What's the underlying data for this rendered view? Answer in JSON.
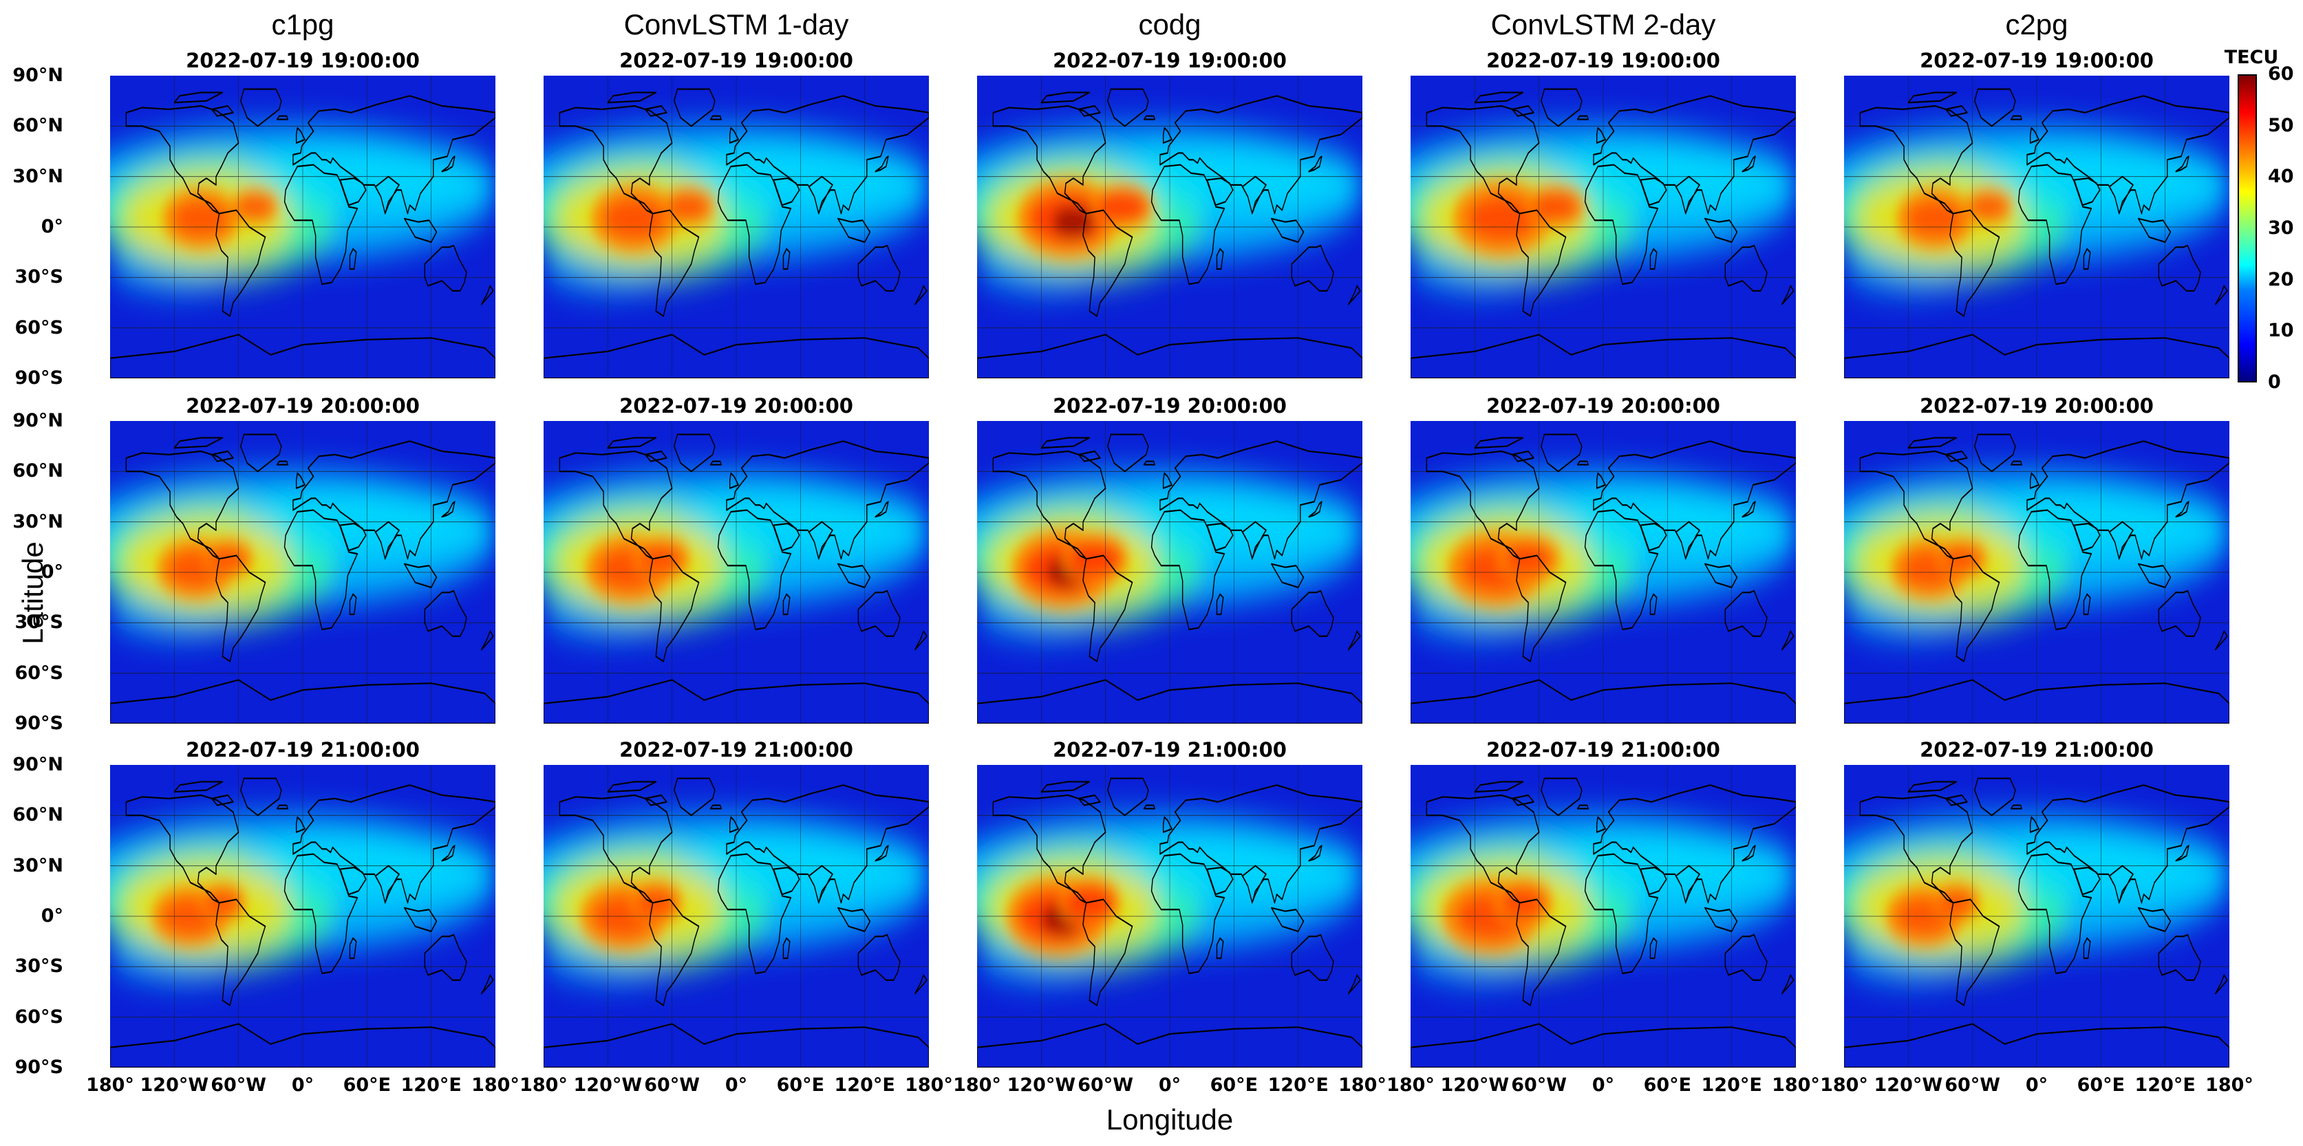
{
  "columns": [
    {
      "title": "c1pg"
    },
    {
      "title": "ConvLSTM 1-day"
    },
    {
      "title": "codg"
    },
    {
      "title": "ConvLSTM 2-day"
    },
    {
      "title": "c2pg"
    }
  ],
  "rows": [
    {
      "timestamp": "2022-07-19 19:00:00"
    },
    {
      "timestamp": "2022-07-19 20:00:00"
    },
    {
      "timestamp": "2022-07-19 21:00:00"
    }
  ],
  "axes": {
    "ylabel": "Latitude",
    "xlabel": "Longitude",
    "lat_ticks": [
      "90°N",
      "60°N",
      "30°N",
      "0°",
      "30°S",
      "60°S",
      "90°S"
    ],
    "lon_ticks": [
      "180°",
      "120°W",
      "60°W",
      "0°",
      "60°E",
      "120°E",
      "180°"
    ]
  },
  "colorbar": {
    "label": "TECU",
    "ticks": [
      "60",
      "50",
      "40",
      "30",
      "20",
      "10",
      "0"
    ],
    "min": 0,
    "max": 60,
    "colors": [
      "#00007f",
      "#0000ff",
      "#0080ff",
      "#00ffff",
      "#7fff7f",
      "#ffff00",
      "#ff8000",
      "#ff0000",
      "#7f0000"
    ]
  },
  "colors": {
    "background": "#0a1fd6",
    "coast": "#000000",
    "grid": "#1a1a1a"
  }
}
